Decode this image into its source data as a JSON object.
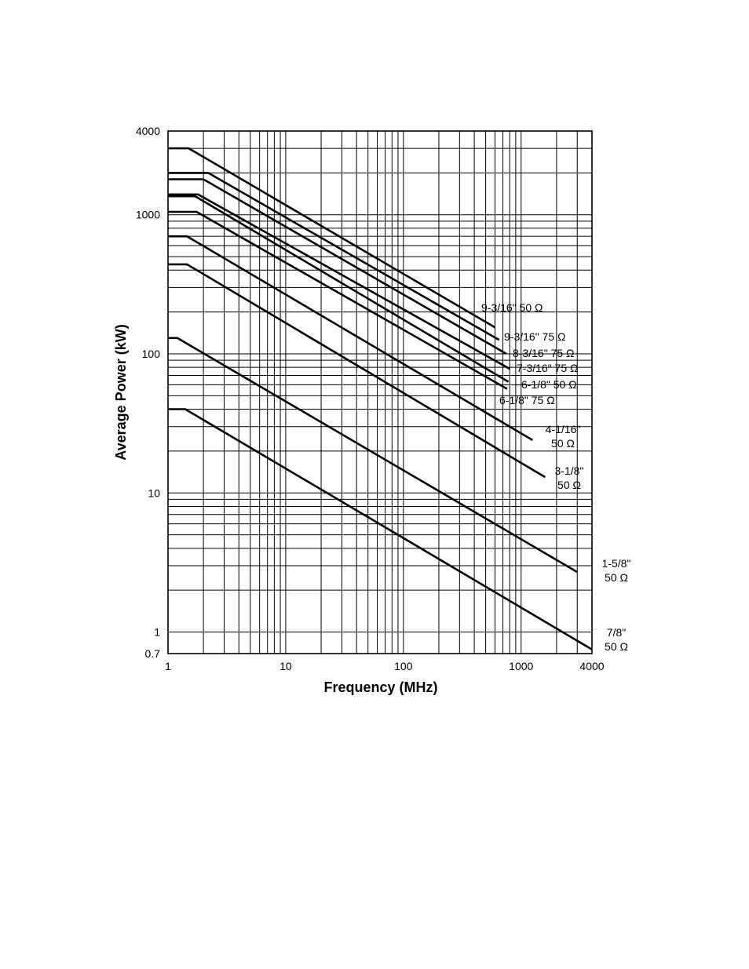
{
  "chart_data": {
    "type": "line",
    "title": "",
    "xlabel": "Frequency (MHz)",
    "ylabel": "Average Power (kW)",
    "x_scale": "log",
    "y_scale": "log",
    "xlim": [
      1,
      4000
    ],
    "ylim": [
      0.7,
      4000
    ],
    "grid": true,
    "x_tick_labels": [
      "1",
      "10",
      "100",
      "1000",
      "4000"
    ],
    "x_tick_values": [
      1,
      10,
      100,
      1000,
      4000
    ],
    "y_tick_labels": [
      "0.7",
      "1",
      "10",
      "100",
      "1000",
      "4000"
    ],
    "y_tick_values": [
      0.7,
      1,
      10,
      100,
      1000,
      4000
    ],
    "series": [
      {
        "label_lines": [
          "9-3/16\" 50 Ω"
        ],
        "x": [
          1,
          1.5,
          600
        ],
        "y": [
          3000,
          3000,
          155
        ]
      },
      {
        "label_lines": [
          "9-3/16\" 75 Ω"
        ],
        "x": [
          1,
          2.2,
          650
        ],
        "y": [
          2000,
          2000,
          126
        ]
      },
      {
        "label_lines": [
          "8-3/16\" 75 Ω"
        ],
        "x": [
          1,
          2.0,
          750
        ],
        "y": [
          1800,
          1800,
          100
        ]
      },
      {
        "label_lines": [
          "7-3/16\" 75 Ω"
        ],
        "x": [
          1,
          1.8,
          800
        ],
        "y": [
          1400,
          1400,
          78
        ]
      },
      {
        "label_lines": [
          "6-1/8\" 50 Ω"
        ],
        "x": [
          1,
          1.7,
          780
        ],
        "y": [
          1360,
          1360,
          63
        ]
      },
      {
        "label_lines": [
          "6-1/8\" 75 Ω"
        ],
        "x": [
          1,
          1.75,
          760
        ],
        "y": [
          1050,
          1050,
          56
        ]
      },
      {
        "label_lines": [
          "4-1/16\"",
          "50 Ω"
        ],
        "x": [
          1,
          1.45,
          1250
        ],
        "y": [
          700,
          700,
          24
        ]
      },
      {
        "label_lines": [
          "3-1/8\"",
          "50 Ω"
        ],
        "x": [
          1,
          1.45,
          1600
        ],
        "y": [
          440,
          440,
          13
        ]
      },
      {
        "label_lines": [
          "1-5/8\"",
          "50 Ω"
        ],
        "x": [
          1,
          1.2,
          3000
        ],
        "y": [
          130,
          130,
          2.7
        ]
      },
      {
        "label_lines": [
          "7/8\"",
          "50 Ω"
        ],
        "x": [
          1,
          1.4,
          4000
        ],
        "y": [
          40,
          40,
          0.75
        ]
      }
    ]
  }
}
